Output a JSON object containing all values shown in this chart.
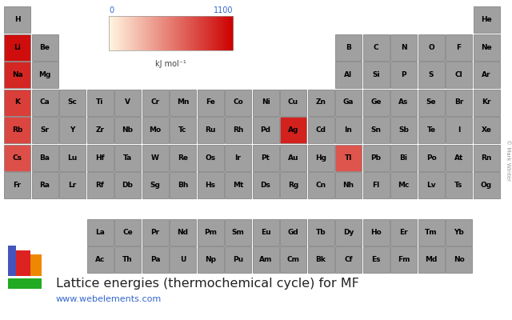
{
  "title": "Lattice energies (thermochemical cycle) for MF",
  "url": "www.webelements.com",
  "colorbar_label": "kJ mol⁻¹",
  "colorbar_min": 0,
  "colorbar_max": 1100,
  "background_color": "#ffffff",
  "cell_default_color": "#a0a0a0",
  "text_color": "#000000",
  "colorbar_label_color": "#3366cc",
  "url_color": "#3366cc",
  "copyright_color": "#999999",
  "elements": [
    {
      "symbol": "H",
      "row": 0,
      "col": 0,
      "value": null
    },
    {
      "symbol": "He",
      "row": 0,
      "col": 17,
      "value": null
    },
    {
      "symbol": "Li",
      "row": 1,
      "col": 0,
      "value": 1037
    },
    {
      "symbol": "Be",
      "row": 1,
      "col": 1,
      "value": null
    },
    {
      "symbol": "B",
      "row": 1,
      "col": 12,
      "value": null
    },
    {
      "symbol": "C",
      "row": 1,
      "col": 13,
      "value": null
    },
    {
      "symbol": "N",
      "row": 1,
      "col": 14,
      "value": null
    },
    {
      "symbol": "O",
      "row": 1,
      "col": 15,
      "value": null
    },
    {
      "symbol": "F",
      "row": 1,
      "col": 16,
      "value": null
    },
    {
      "symbol": "Ne",
      "row": 1,
      "col": 17,
      "value": null
    },
    {
      "symbol": "Na",
      "row": 2,
      "col": 0,
      "value": 923
    },
    {
      "symbol": "Mg",
      "row": 2,
      "col": 1,
      "value": null
    },
    {
      "symbol": "Al",
      "row": 2,
      "col": 12,
      "value": null
    },
    {
      "symbol": "Si",
      "row": 2,
      "col": 13,
      "value": null
    },
    {
      "symbol": "P",
      "row": 2,
      "col": 14,
      "value": null
    },
    {
      "symbol": "S",
      "row": 2,
      "col": 15,
      "value": null
    },
    {
      "symbol": "Cl",
      "row": 2,
      "col": 16,
      "value": null
    },
    {
      "symbol": "Ar",
      "row": 2,
      "col": 17,
      "value": null
    },
    {
      "symbol": "K",
      "row": 3,
      "col": 0,
      "value": 817
    },
    {
      "symbol": "Ca",
      "row": 3,
      "col": 1,
      "value": null
    },
    {
      "symbol": "Sc",
      "row": 3,
      "col": 2,
      "value": null
    },
    {
      "symbol": "Ti",
      "row": 3,
      "col": 3,
      "value": null
    },
    {
      "symbol": "V",
      "row": 3,
      "col": 4,
      "value": null
    },
    {
      "symbol": "Cr",
      "row": 3,
      "col": 5,
      "value": null
    },
    {
      "symbol": "Mn",
      "row": 3,
      "col": 6,
      "value": null
    },
    {
      "symbol": "Fe",
      "row": 3,
      "col": 7,
      "value": null
    },
    {
      "symbol": "Co",
      "row": 3,
      "col": 8,
      "value": null
    },
    {
      "symbol": "Ni",
      "row": 3,
      "col": 9,
      "value": null
    },
    {
      "symbol": "Cu",
      "row": 3,
      "col": 10,
      "value": null
    },
    {
      "symbol": "Zn",
      "row": 3,
      "col": 11,
      "value": null
    },
    {
      "symbol": "Ga",
      "row": 3,
      "col": 12,
      "value": null
    },
    {
      "symbol": "Ge",
      "row": 3,
      "col": 13,
      "value": null
    },
    {
      "symbol": "As",
      "row": 3,
      "col": 14,
      "value": null
    },
    {
      "symbol": "Se",
      "row": 3,
      "col": 15,
      "value": null
    },
    {
      "symbol": "Br",
      "row": 3,
      "col": 16,
      "value": null
    },
    {
      "symbol": "Kr",
      "row": 3,
      "col": 17,
      "value": null
    },
    {
      "symbol": "Rb",
      "row": 4,
      "col": 0,
      "value": 783
    },
    {
      "symbol": "Sr",
      "row": 4,
      "col": 1,
      "value": null
    },
    {
      "symbol": "Y",
      "row": 4,
      "col": 2,
      "value": null
    },
    {
      "symbol": "Zr",
      "row": 4,
      "col": 3,
      "value": null
    },
    {
      "symbol": "Nb",
      "row": 4,
      "col": 4,
      "value": null
    },
    {
      "symbol": "Mo",
      "row": 4,
      "col": 5,
      "value": null
    },
    {
      "symbol": "Tc",
      "row": 4,
      "col": 6,
      "value": null
    },
    {
      "symbol": "Ru",
      "row": 4,
      "col": 7,
      "value": null
    },
    {
      "symbol": "Rh",
      "row": 4,
      "col": 8,
      "value": null
    },
    {
      "symbol": "Pd",
      "row": 4,
      "col": 9,
      "value": null
    },
    {
      "symbol": "Ag",
      "row": 4,
      "col": 10,
      "value": 953
    },
    {
      "symbol": "Cd",
      "row": 4,
      "col": 11,
      "value": null
    },
    {
      "symbol": "In",
      "row": 4,
      "col": 12,
      "value": null
    },
    {
      "symbol": "Sn",
      "row": 4,
      "col": 13,
      "value": null
    },
    {
      "symbol": "Sb",
      "row": 4,
      "col": 14,
      "value": null
    },
    {
      "symbol": "Te",
      "row": 4,
      "col": 15,
      "value": null
    },
    {
      "symbol": "I",
      "row": 4,
      "col": 16,
      "value": null
    },
    {
      "symbol": "Xe",
      "row": 4,
      "col": 17,
      "value": null
    },
    {
      "symbol": "Cs",
      "row": 5,
      "col": 0,
      "value": 740
    },
    {
      "symbol": "Ba",
      "row": 5,
      "col": 1,
      "value": null
    },
    {
      "symbol": "Lu",
      "row": 5,
      "col": 2,
      "value": null
    },
    {
      "symbol": "Hf",
      "row": 5,
      "col": 3,
      "value": null
    },
    {
      "symbol": "Ta",
      "row": 5,
      "col": 4,
      "value": null
    },
    {
      "symbol": "W",
      "row": 5,
      "col": 5,
      "value": null
    },
    {
      "symbol": "Re",
      "row": 5,
      "col": 6,
      "value": null
    },
    {
      "symbol": "Os",
      "row": 5,
      "col": 7,
      "value": null
    },
    {
      "symbol": "Ir",
      "row": 5,
      "col": 8,
      "value": null
    },
    {
      "symbol": "Pt",
      "row": 5,
      "col": 9,
      "value": null
    },
    {
      "symbol": "Au",
      "row": 5,
      "col": 10,
      "value": null
    },
    {
      "symbol": "Hg",
      "row": 5,
      "col": 11,
      "value": null
    },
    {
      "symbol": "Tl",
      "row": 5,
      "col": 12,
      "value": 720
    },
    {
      "symbol": "Pb",
      "row": 5,
      "col": 13,
      "value": null
    },
    {
      "symbol": "Bi",
      "row": 5,
      "col": 14,
      "value": null
    },
    {
      "symbol": "Po",
      "row": 5,
      "col": 15,
      "value": null
    },
    {
      "symbol": "At",
      "row": 5,
      "col": 16,
      "value": null
    },
    {
      "symbol": "Rn",
      "row": 5,
      "col": 17,
      "value": null
    },
    {
      "symbol": "Fr",
      "row": 6,
      "col": 0,
      "value": null
    },
    {
      "symbol": "Ra",
      "row": 6,
      "col": 1,
      "value": null
    },
    {
      "symbol": "Lr",
      "row": 6,
      "col": 2,
      "value": null
    },
    {
      "symbol": "Rf",
      "row": 6,
      "col": 3,
      "value": null
    },
    {
      "symbol": "Db",
      "row": 6,
      "col": 4,
      "value": null
    },
    {
      "symbol": "Sg",
      "row": 6,
      "col": 5,
      "value": null
    },
    {
      "symbol": "Bh",
      "row": 6,
      "col": 6,
      "value": null
    },
    {
      "symbol": "Hs",
      "row": 6,
      "col": 7,
      "value": null
    },
    {
      "symbol": "Mt",
      "row": 6,
      "col": 8,
      "value": null
    },
    {
      "symbol": "Ds",
      "row": 6,
      "col": 9,
      "value": null
    },
    {
      "symbol": "Rg",
      "row": 6,
      "col": 10,
      "value": null
    },
    {
      "symbol": "Cn",
      "row": 6,
      "col": 11,
      "value": null
    },
    {
      "symbol": "Nh",
      "row": 6,
      "col": 12,
      "value": null
    },
    {
      "symbol": "Fl",
      "row": 6,
      "col": 13,
      "value": null
    },
    {
      "symbol": "Mc",
      "row": 6,
      "col": 14,
      "value": null
    },
    {
      "symbol": "Lv",
      "row": 6,
      "col": 15,
      "value": null
    },
    {
      "symbol": "Ts",
      "row": 6,
      "col": 16,
      "value": null
    },
    {
      "symbol": "Og",
      "row": 6,
      "col": 17,
      "value": null
    },
    {
      "symbol": "La",
      "row": 8,
      "col": 3,
      "value": null
    },
    {
      "symbol": "Ce",
      "row": 8,
      "col": 4,
      "value": null
    },
    {
      "symbol": "Pr",
      "row": 8,
      "col": 5,
      "value": null
    },
    {
      "symbol": "Nd",
      "row": 8,
      "col": 6,
      "value": null
    },
    {
      "symbol": "Pm",
      "row": 8,
      "col": 7,
      "value": null
    },
    {
      "symbol": "Sm",
      "row": 8,
      "col": 8,
      "value": null
    },
    {
      "symbol": "Eu",
      "row": 8,
      "col": 9,
      "value": null
    },
    {
      "symbol": "Gd",
      "row": 8,
      "col": 10,
      "value": null
    },
    {
      "symbol": "Tb",
      "row": 8,
      "col": 11,
      "value": null
    },
    {
      "symbol": "Dy",
      "row": 8,
      "col": 12,
      "value": null
    },
    {
      "symbol": "Ho",
      "row": 8,
      "col": 13,
      "value": null
    },
    {
      "symbol": "Er",
      "row": 8,
      "col": 14,
      "value": null
    },
    {
      "symbol": "Tm",
      "row": 8,
      "col": 15,
      "value": null
    },
    {
      "symbol": "Yb",
      "row": 8,
      "col": 16,
      "value": null
    },
    {
      "symbol": "Ac",
      "row": 9,
      "col": 3,
      "value": null
    },
    {
      "symbol": "Th",
      "row": 9,
      "col": 4,
      "value": null
    },
    {
      "symbol": "Pa",
      "row": 9,
      "col": 5,
      "value": null
    },
    {
      "symbol": "U",
      "row": 9,
      "col": 6,
      "value": null
    },
    {
      "symbol": "Np",
      "row": 9,
      "col": 7,
      "value": null
    },
    {
      "symbol": "Pu",
      "row": 9,
      "col": 8,
      "value": null
    },
    {
      "symbol": "Am",
      "row": 9,
      "col": 9,
      "value": null
    },
    {
      "symbol": "Cm",
      "row": 9,
      "col": 10,
      "value": null
    },
    {
      "symbol": "Bk",
      "row": 9,
      "col": 11,
      "value": null
    },
    {
      "symbol": "Cf",
      "row": 9,
      "col": 12,
      "value": null
    },
    {
      "symbol": "Es",
      "row": 9,
      "col": 13,
      "value": null
    },
    {
      "symbol": "Fm",
      "row": 9,
      "col": 14,
      "value": null
    },
    {
      "symbol": "Md",
      "row": 9,
      "col": 15,
      "value": null
    },
    {
      "symbol": "No",
      "row": 9,
      "col": 16,
      "value": null
    }
  ]
}
